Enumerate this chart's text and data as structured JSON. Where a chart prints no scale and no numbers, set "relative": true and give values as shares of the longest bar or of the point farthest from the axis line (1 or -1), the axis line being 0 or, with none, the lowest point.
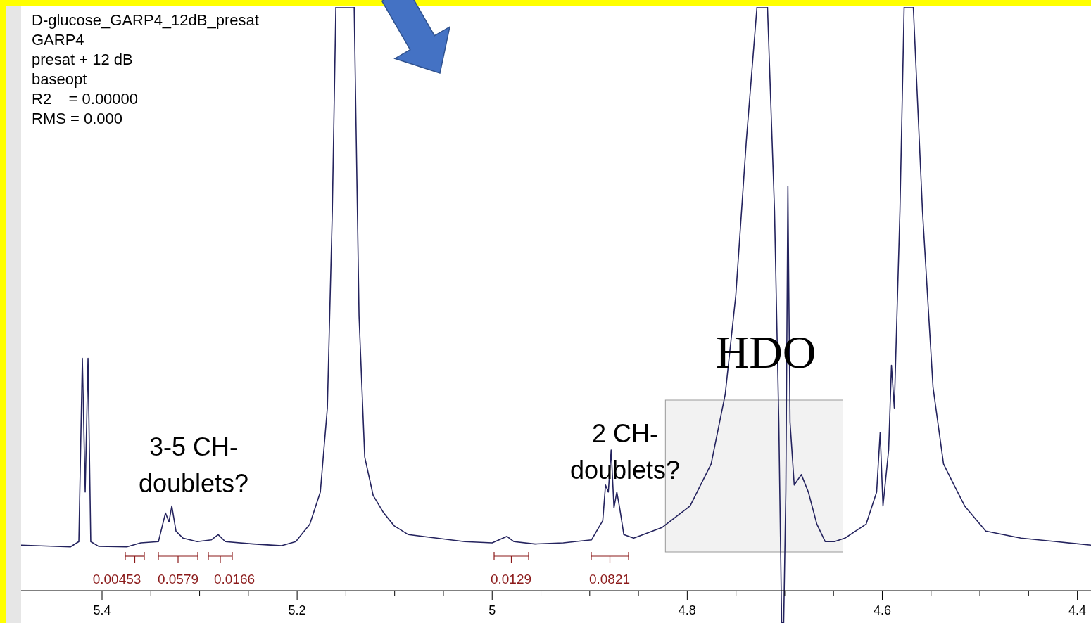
{
  "chart_data": {
    "type": "line",
    "relative": true,
    "x": [
      5.483,
      5.4325,
      5.4238,
      5.4202,
      5.4173,
      5.4144,
      5.4116,
      5.4036,
      5.3747,
      5.3603,
      5.3422,
      5.335,
      5.3314,
      5.3285,
      5.3242,
      5.317,
      5.3025,
      5.2881,
      5.2809,
      5.2736,
      5.2448,
      5.2159,
      5.2014,
      5.187,
      5.1762,
      5.169,
      5.1639,
      5.1603,
      5.1415,
      5.1365,
      5.1307,
      5.122,
      5.1112,
      5.1004,
      5.0859,
      5.057,
      5.0282,
      5.0,
      4.9848,
      4.9776,
      4.956,
      4.9271,
      4.8982,
      4.8866,
      4.8838,
      4.8809,
      4.878,
      4.8751,
      4.8722,
      4.8693,
      4.865,
      4.8549,
      4.826,
      4.7971,
      4.7755,
      4.761,
      4.7502,
      4.7394,
      4.7285,
      4.7177,
      4.7105,
      4.7061,
      4.7032,
      4.7011,
      4.6989,
      4.6968,
      4.6946,
      4.6903,
      4.683,
      4.6758,
      4.6671,
      4.6585,
      4.6491,
      4.6383,
      4.6166,
      4.6058,
      4.6022,
      4.5993,
      4.5935,
      4.5906,
      4.5877,
      4.5819,
      4.5776,
      4.5682,
      4.5588,
      4.548,
      4.5372,
      4.5264,
      4.5155,
      4.4939,
      4.4578,
      4.4217,
      4.386
    ],
    "series": [
      {
        "color": "#24235e",
        "values": [
          0.078,
          0.075,
          0.084,
          0.398,
          0.169,
          0.398,
          0.084,
          0.076,
          0.075,
          0.082,
          0.084,
          0.133,
          0.118,
          0.145,
          0.102,
          0.09,
          0.084,
          0.087,
          0.096,
          0.084,
          0.08,
          0.077,
          0.084,
          0.114,
          0.169,
          0.313,
          0.651,
          1,
          1,
          0.47,
          0.229,
          0.163,
          0.133,
          0.111,
          0.096,
          0.09,
          0.084,
          0.082,
          0.093,
          0.084,
          0.08,
          0.082,
          0.087,
          0.12,
          0.181,
          0.169,
          0.241,
          0.142,
          0.169,
          0.142,
          0.096,
          0.09,
          0.108,
          0.145,
          0.217,
          0.337,
          0.506,
          0.771,
          1,
          1,
          0.651,
          0.289,
          -0.055,
          -0.055,
          0.169,
          0.693,
          0.289,
          0.181,
          0.199,
          0.169,
          0.114,
          0.084,
          0.084,
          0.09,
          0.114,
          0.169,
          0.271,
          0.145,
          0.241,
          0.386,
          0.313,
          0.651,
          1,
          1,
          0.651,
          0.349,
          0.217,
          0.181,
          0.145,
          0.102,
          0.09,
          0.084,
          0.078
        ]
      }
    ],
    "xlim": [
      5.483,
      4.386
    ],
    "xticks": [
      5.4,
      {
        "value": 5.35,
        "label": null
      },
      {
        "value": 5.3,
        "label": null
      },
      {
        "value": 5.25,
        "label": null
      },
      5.2,
      {
        "value": 5.15,
        "label": null
      },
      {
        "value": 5.1,
        "label": null
      },
      {
        "value": 5.05,
        "label": null
      },
      5,
      {
        "value": 4.95,
        "label": null
      },
      {
        "value": 4.9,
        "label": null
      },
      {
        "value": 4.85,
        "label": null
      },
      4.8,
      {
        "value": 4.75,
        "label": null
      },
      {
        "value": 4.7,
        "label": null
      },
      {
        "value": 4.65,
        "label": null
      },
      4.6,
      {
        "value": 4.55,
        "label": null
      },
      {
        "value": 4.5,
        "label": null
      },
      {
        "value": 4.45,
        "label": null
      },
      4.4
    ],
    "bands": [
      {
        "axis": "x",
        "from": 4.8224,
        "to": 4.6404,
        "color": "#f2f2f2"
      }
    ],
    "annotations": [
      "D-glucose_GARP4_12dB_presat",
      "GARP4",
      "presat + 12 dB",
      "baseopt",
      "R2    = 0.00000",
      "RMS = 0.000",
      "0.00453",
      "0.0579",
      "0.0166",
      "0.0129",
      "0.0821",
      "3-5 CH-\ndoublets?",
      "2 CH-\ndoublets?",
      "HDO"
    ],
    "line_style": "solid"
  }
}
